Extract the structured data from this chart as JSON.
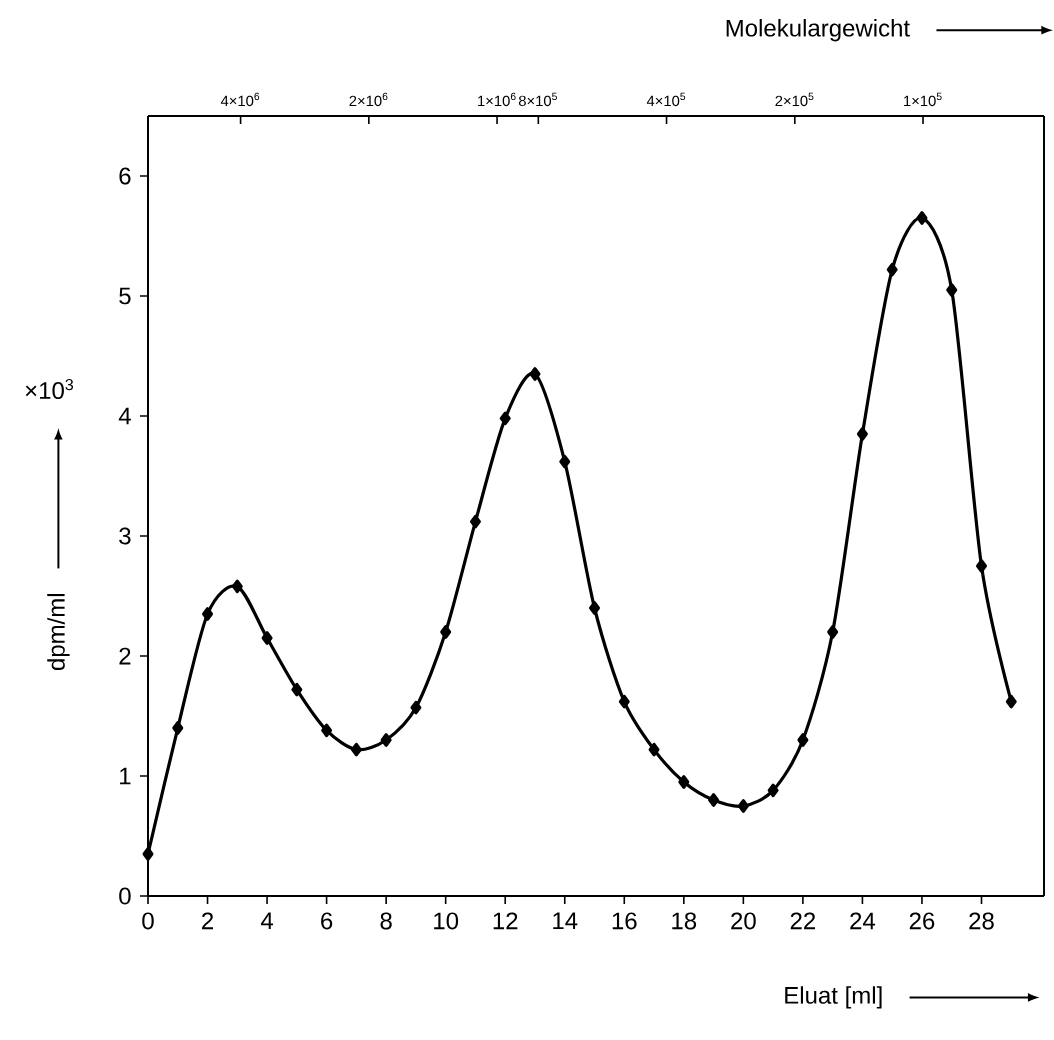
{
  "chart_data": {
    "type": "line",
    "xlabel": "Eluat [ml]",
    "ylabel": "dpm/ml",
    "x2label": "Molekulargewicht",
    "annotations": [
      "×10$^{3}$"
    ],
    "x": [
      0,
      1,
      2,
      3,
      4,
      5,
      6,
      7,
      8,
      9,
      10,
      11,
      12,
      13,
      14,
      15,
      16,
      17,
      18,
      19,
      20,
      21,
      22,
      23,
      24,
      25,
      26,
      27,
      28,
      29
    ],
    "series": [
      {
        "color": "#000000",
        "values": [
          0.35,
          1.4,
          2.35,
          2.58,
          2.15,
          1.72,
          1.38,
          1.22,
          1.3,
          1.57,
          2.2,
          3.12,
          3.98,
          4.35,
          3.62,
          2.4,
          1.62,
          1.22,
          0.95,
          0.8,
          0.75,
          0.88,
          1.3,
          2.2,
          3.85,
          5.22,
          5.65,
          5.05,
          2.75,
          1.62
        ]
      }
    ],
    "xlim": [
      0,
      30.1
    ],
    "ylim": [
      0,
      6.5
    ],
    "xticks": [
      0,
      2,
      4,
      6,
      8,
      10,
      12,
      14,
      16,
      18,
      20,
      22,
      24,
      26,
      28
    ],
    "yticks": [
      0,
      1,
      2,
      3,
      4,
      5,
      6
    ],
    "x2lim": [
      6600000,
      52000
    ],
    "log": "x2",
    "x2ticks": [
      {
        "value": 4000000,
        "label": "4×10$^{6}$"
      },
      {
        "value": 2000000,
        "label": "2×10$^{6}$"
      },
      {
        "value": 1000000,
        "label": "1×10$^{6}$"
      },
      {
        "value": 800000,
        "label": "8×10$^{5}$"
      },
      {
        "value": 400000,
        "label": "4×10$^{5}$"
      },
      {
        "value": 200000,
        "label": "2×10$^{5}$"
      },
      {
        "value": 100000,
        "label": "1×10$^{5}$"
      }
    ],
    "marker": "diamond",
    "line_style": "solid",
    "grid": false
  }
}
